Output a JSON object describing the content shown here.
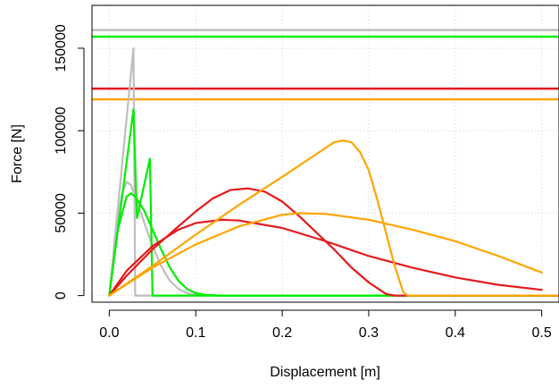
{
  "chart_data": {
    "type": "line",
    "xlabel": "Displacement [m]",
    "ylabel": "Force [N]",
    "xlim": [
      -0.02,
      0.52
    ],
    "ylim": [
      -4000,
      176000
    ],
    "grid": true,
    "x_ticks": [
      0.0,
      0.1,
      0.2,
      0.3,
      0.4,
      0.5
    ],
    "x_tick_labels": [
      "0.0",
      "0.1",
      "0.2",
      "0.3",
      "0.4",
      "0.5"
    ],
    "y_ticks": [
      0,
      50000,
      100000,
      150000
    ],
    "y_tick_labels": [
      "0",
      "50000",
      "100000",
      "150000"
    ],
    "colors": {
      "grey": "#bebebe",
      "green": "#00ee00",
      "red": "#e31a1c",
      "orange": "#ffa500"
    },
    "hlines": [
      {
        "color": "grey",
        "y": 161000
      },
      {
        "color": "green",
        "y": 157000
      },
      {
        "color": "red",
        "y": 125500
      },
      {
        "color": "orange",
        "y": 119000
      }
    ],
    "series": [
      {
        "color": "grey",
        "points": [
          [
            0,
            0
          ],
          [
            0.028,
            150000
          ],
          [
            0.03,
            0
          ],
          [
            0.52,
            0
          ]
        ]
      },
      {
        "color": "grey",
        "points": [
          [
            0,
            0
          ],
          [
            0.005,
            25000
          ],
          [
            0.01,
            48000
          ],
          [
            0.015,
            62000
          ],
          [
            0.02,
            69000
          ],
          [
            0.025,
            67000
          ],
          [
            0.03,
            60000
          ],
          [
            0.04,
            45000
          ],
          [
            0.05,
            30000
          ],
          [
            0.06,
            18000
          ],
          [
            0.07,
            9000
          ],
          [
            0.08,
            4000
          ],
          [
            0.09,
            1500
          ],
          [
            0.1,
            500
          ],
          [
            0.12,
            0
          ],
          [
            0.52,
            0
          ]
        ]
      },
      {
        "color": "green",
        "points": [
          [
            0,
            0
          ],
          [
            0.028,
            113000
          ],
          [
            0.032,
            47000
          ],
          [
            0.047,
            83000
          ],
          [
            0.05,
            0
          ],
          [
            0.52,
            0
          ]
        ]
      },
      {
        "color": "green",
        "points": [
          [
            0,
            0
          ],
          [
            0.005,
            20000
          ],
          [
            0.01,
            40000
          ],
          [
            0.02,
            60000
          ],
          [
            0.025,
            62000
          ],
          [
            0.03,
            60000
          ],
          [
            0.04,
            52000
          ],
          [
            0.05,
            40000
          ],
          [
            0.06,
            28000
          ],
          [
            0.07,
            17000
          ],
          [
            0.08,
            9000
          ],
          [
            0.09,
            4000
          ],
          [
            0.1,
            1500
          ],
          [
            0.11,
            500
          ],
          [
            0.13,
            0
          ],
          [
            0.52,
            0
          ]
        ]
      },
      {
        "color": "red",
        "points": [
          [
            0,
            0
          ],
          [
            0.02,
            12000
          ],
          [
            0.05,
            28000
          ],
          [
            0.08,
            42000
          ],
          [
            0.1,
            51000
          ],
          [
            0.12,
            59000
          ],
          [
            0.14,
            64000
          ],
          [
            0.16,
            65000
          ],
          [
            0.18,
            63000
          ],
          [
            0.2,
            57000
          ],
          [
            0.22,
            48000
          ],
          [
            0.24,
            38000
          ],
          [
            0.26,
            28000
          ],
          [
            0.28,
            17000
          ],
          [
            0.3,
            8000
          ],
          [
            0.32,
            1000
          ],
          [
            0.33,
            0
          ],
          [
            0.52,
            0
          ]
        ]
      },
      {
        "color": "red",
        "points": [
          [
            0,
            0
          ],
          [
            0.02,
            15000
          ],
          [
            0.05,
            30000
          ],
          [
            0.08,
            40000
          ],
          [
            0.1,
            44000
          ],
          [
            0.13,
            46000
          ],
          [
            0.15,
            45500
          ],
          [
            0.2,
            41000
          ],
          [
            0.25,
            33000
          ],
          [
            0.3,
            24000
          ],
          [
            0.35,
            17000
          ],
          [
            0.4,
            11000
          ],
          [
            0.45,
            6500
          ],
          [
            0.5,
            3500
          ]
        ]
      },
      {
        "color": "orange",
        "points": [
          [
            0,
            0
          ],
          [
            0.05,
            18000
          ],
          [
            0.1,
            37000
          ],
          [
            0.15,
            55000
          ],
          [
            0.2,
            72000
          ],
          [
            0.24,
            86000
          ],
          [
            0.26,
            93000
          ],
          [
            0.27,
            94000
          ],
          [
            0.28,
            93000
          ],
          [
            0.29,
            87000
          ],
          [
            0.3,
            76000
          ],
          [
            0.31,
            58000
          ],
          [
            0.32,
            38000
          ],
          [
            0.33,
            18000
          ],
          [
            0.34,
            2000
          ],
          [
            0.345,
            0
          ],
          [
            0.52,
            0
          ]
        ]
      },
      {
        "color": "orange",
        "points": [
          [
            0,
            0
          ],
          [
            0.05,
            17000
          ],
          [
            0.1,
            31000
          ],
          [
            0.15,
            42000
          ],
          [
            0.2,
            49000
          ],
          [
            0.22,
            50000
          ],
          [
            0.25,
            49500
          ],
          [
            0.3,
            46000
          ],
          [
            0.35,
            40000
          ],
          [
            0.4,
            33000
          ],
          [
            0.45,
            24000
          ],
          [
            0.5,
            14000
          ]
        ]
      }
    ]
  }
}
